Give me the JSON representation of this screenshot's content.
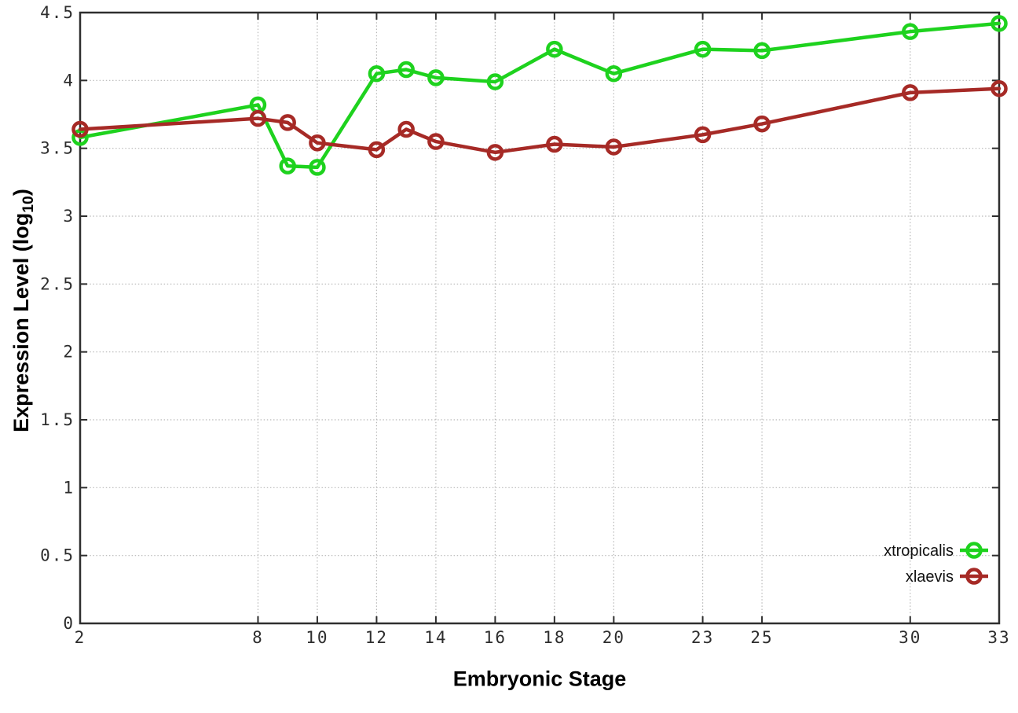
{
  "chart_data": {
    "type": "line",
    "xlabel": "Embryonic Stage",
    "ylabel_text": "Expression Level (log",
    "ylabel_sub": "10",
    "ylabel_close": ")",
    "x": [
      2,
      8,
      9,
      10,
      12,
      13,
      14,
      16,
      18,
      20,
      23,
      25,
      30,
      33
    ],
    "xlim": [
      2,
      33
    ],
    "ylim": [
      0,
      4.5
    ],
    "x_tick_values": [
      2,
      8,
      10,
      12,
      14,
      16,
      18,
      20,
      23,
      25,
      30,
      33
    ],
    "x_tick_labels": [
      "2",
      "8",
      "10",
      "12",
      "14",
      "16",
      "18",
      "20",
      "23",
      "25",
      "30",
      "33"
    ],
    "y_tick_values": [
      0,
      0.5,
      1,
      1.5,
      2,
      2.5,
      3,
      3.5,
      4,
      4.5
    ],
    "y_tick_labels": [
      "0",
      "0.5",
      "1",
      "1.5",
      "2",
      "2.5",
      "3",
      "3.5",
      "4",
      "4.5"
    ],
    "grid": true,
    "legend_position": "inside-bottom-right",
    "series": [
      {
        "name": "xtropicalis",
        "color": "#1ed21e",
        "values": [
          3.58,
          3.82,
          3.37,
          3.36,
          4.05,
          4.08,
          4.02,
          3.99,
          4.23,
          4.05,
          4.23,
          4.22,
          4.36,
          4.42
        ]
      },
      {
        "name": "xlaevis",
        "color": "#a62a26",
        "values": [
          3.64,
          3.72,
          3.69,
          3.54,
          3.49,
          3.64,
          3.55,
          3.47,
          3.53,
          3.51,
          3.6,
          3.68,
          3.91,
          3.94
        ]
      }
    ]
  },
  "style": {
    "background": "#ffffff",
    "border_color": "#2e2e2e",
    "grid_color": "#b8b8b8",
    "tick_label_color": "#2d2d2d",
    "axis_title_color": "#000000",
    "legend_text_color": "#111111"
  }
}
